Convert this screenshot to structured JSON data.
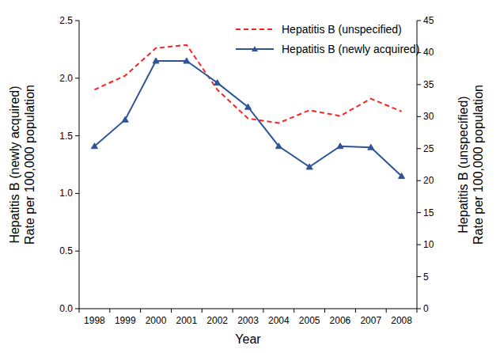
{
  "chart_data": {
    "type": "line",
    "xlabel": "Year",
    "ylabel": [
      "Hepatitis B (newly acquired)",
      "Rate per 100,000 population"
    ],
    "y2label": [
      "Hepatitis B (unspecified)",
      "Rate per 100,000 population"
    ],
    "categories": [
      "1998",
      "1999",
      "2000",
      "2001",
      "2002",
      "2003",
      "2004",
      "2005",
      "2006",
      "2007",
      "2008"
    ],
    "ylim": [
      0,
      2.5
    ],
    "yticks": [
      {
        "value": 0,
        "label": "0.0"
      },
      {
        "value": 0.5,
        "label": "0.5"
      },
      {
        "value": 1,
        "label": "1.0"
      },
      {
        "value": 1.5,
        "label": "1.5"
      },
      {
        "value": 2,
        "label": "2.0"
      },
      {
        "value": 2.5,
        "label": "2.5"
      }
    ],
    "y2lim": [
      0,
      45
    ],
    "y2ticks": [
      0,
      5,
      10,
      15,
      20,
      25,
      30,
      35,
      40,
      45
    ],
    "grid": false,
    "legend": "upper right",
    "series": [
      {
        "name": "Hepatitis B (unspecified)",
        "color": "#ff2020",
        "line_style": "dashed",
        "marker": "none",
        "axis": "y2",
        "values": [
          34.2,
          36.4,
          40.7,
          41.2,
          34.2,
          29.7,
          29.0,
          31.0,
          30.1,
          32.8,
          30.8
        ]
      },
      {
        "name": "Hepatitis B (newly acquired)",
        "color": "#2e5597",
        "line_style": "solid",
        "marker": "triangle",
        "values": [
          1.41,
          1.64,
          2.15,
          2.15,
          1.96,
          1.75,
          1.41,
          1.23,
          1.41,
          1.4,
          1.15
        ]
      }
    ]
  }
}
